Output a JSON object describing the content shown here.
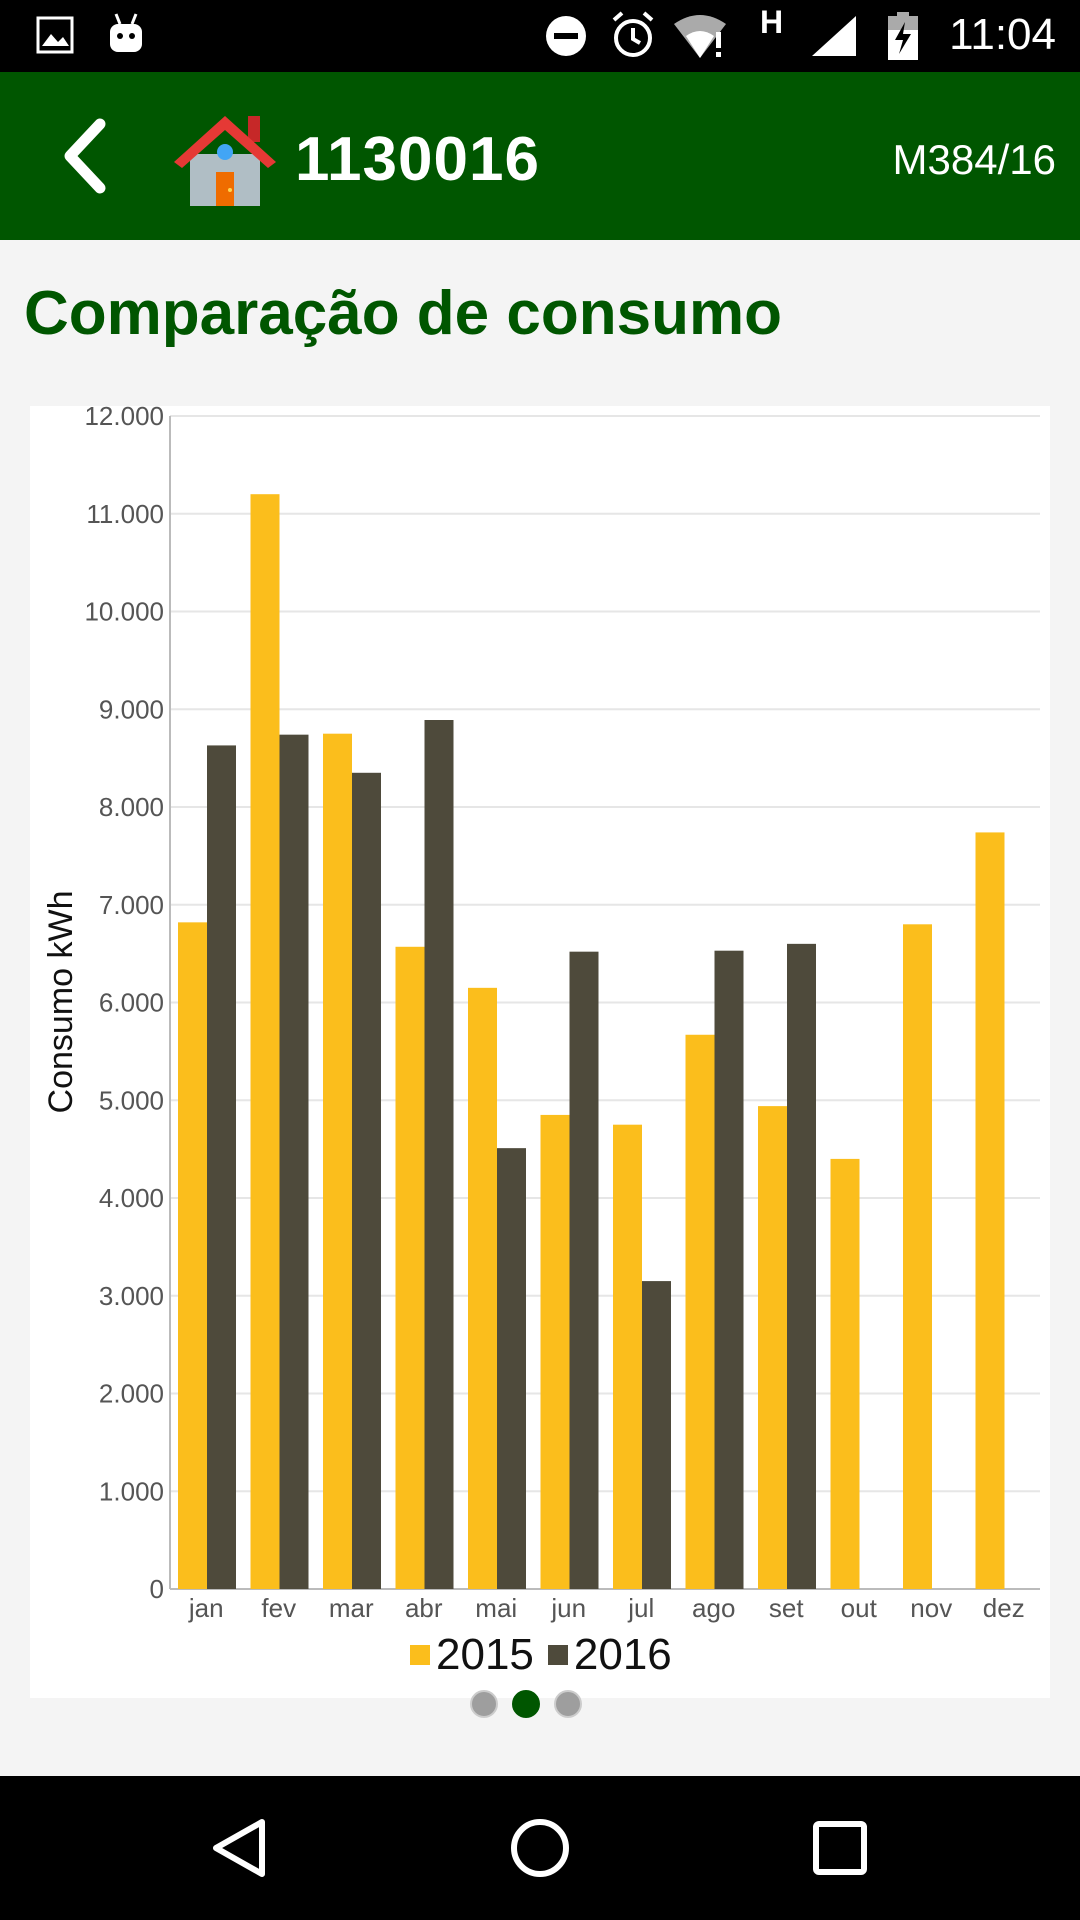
{
  "status_bar": {
    "time": "11:04",
    "network": "H",
    "icons": [
      "image-icon",
      "android-icon",
      "dnd-icon",
      "alarm-icon",
      "wifi-alert-icon",
      "signal-icon",
      "battery-charging-icon"
    ]
  },
  "app_bar": {
    "title": "1130016",
    "subtitle": "M384/16",
    "icons": [
      "back-arrow-icon",
      "house-icon"
    ]
  },
  "section": {
    "title": "Comparação de consumo"
  },
  "chart_data": {
    "type": "bar",
    "title": "",
    "xlabel": "",
    "ylabel": "Consumo kWh",
    "ylim": [
      0,
      12000
    ],
    "yticks": [
      "0",
      "1.000",
      "2.000",
      "3.000",
      "4.000",
      "5.000",
      "6.000",
      "7.000",
      "8.000",
      "9.000",
      "10.000",
      "11.000",
      "12.000"
    ],
    "categories": [
      "jan",
      "fev",
      "mar",
      "abr",
      "mai",
      "jun",
      "jul",
      "ago",
      "set",
      "out",
      "nov",
      "dez"
    ],
    "series": [
      {
        "name": "2015",
        "color": "#fbbe1c",
        "values": [
          6820,
          11200,
          8750,
          6570,
          6150,
          4850,
          4750,
          5670,
          4940,
          4400,
          6800,
          7740
        ]
      },
      {
        "name": "2016",
        "color": "#4e4a3b",
        "values": [
          8630,
          8740,
          8350,
          8890,
          4510,
          6520,
          3150,
          6530,
          6600,
          null,
          null,
          null
        ]
      }
    ],
    "legend": "bottom-center",
    "grid": true
  },
  "pager": {
    "count": 3,
    "active": 1
  },
  "nav_bar": {
    "icons": [
      "back-triangle-icon",
      "home-circle-icon",
      "recents-square-icon"
    ]
  }
}
